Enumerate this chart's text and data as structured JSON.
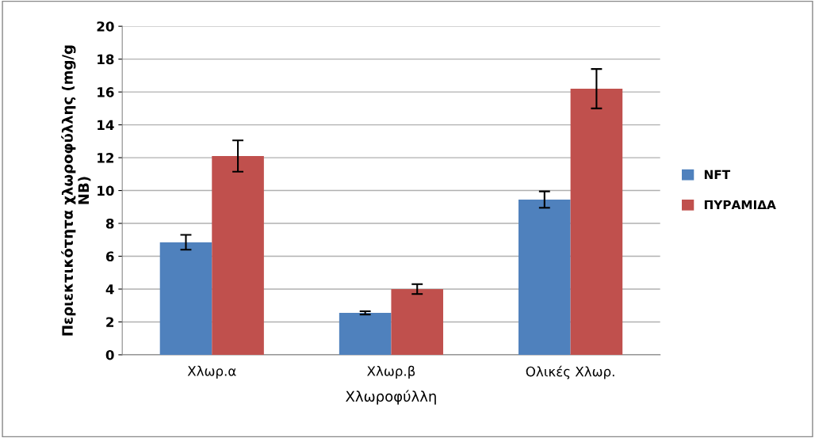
{
  "chart_data": {
    "type": "bar",
    "xlabel": "Χλωροφύλλη",
    "ylabel": "Περιεκτικότητα χλωροφύλλης (mg/g\nNB)",
    "categories": [
      "Χλωρ.α",
      "Χλωρ.β",
      "Ολικές Χλωρ."
    ],
    "series": [
      {
        "name": "NFT",
        "color": "#4f81bd",
        "values": [
          6.85,
          2.55,
          9.45
        ],
        "errors": [
          0.45,
          0.1,
          0.5
        ]
      },
      {
        "name": "ΠΥΡΑΜΙΔΑ",
        "color": "#c0504d",
        "values": [
          12.1,
          4.0,
          16.2
        ],
        "errors": [
          0.95,
          0.3,
          1.2
        ]
      }
    ],
    "ylim": [
      0,
      20
    ],
    "yticks": [
      0,
      2,
      4,
      6,
      8,
      10,
      12,
      14,
      16,
      18,
      20
    ],
    "grid": "y",
    "legend": "right"
  }
}
